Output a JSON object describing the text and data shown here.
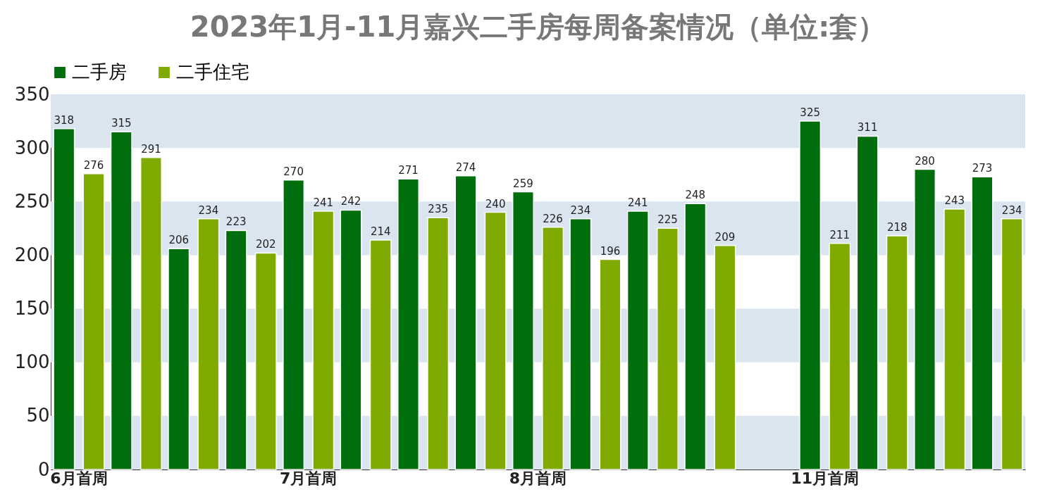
{
  "chart_data": {
    "type": "bar",
    "title": "2023年1月-11月嘉兴二手房每周备案情况（单位:套）",
    "categories": [
      "6月首周",
      null,
      null,
      null,
      "7月首周",
      null,
      null,
      null,
      "8月首周",
      null,
      null,
      null,
      null,
      "11月首周",
      null,
      null,
      null
    ],
    "series": [
      {
        "name": "二手房",
        "color": "#006e0c",
        "values": [
          318,
          315,
          206,
          223,
          270,
          242,
          271,
          274,
          259,
          234,
          241,
          248,
          null,
          325,
          311,
          280,
          273
        ]
      },
      {
        "name": "二手住宅",
        "color": "#7faa00",
        "values": [
          276,
          291,
          234,
          202,
          241,
          214,
          235,
          240,
          226,
          196,
          225,
          209,
          null,
          211,
          218,
          243,
          234
        ]
      }
    ],
    "ylim": [
      0,
      350
    ],
    "yticks": [
      0,
      50,
      100,
      150,
      200,
      250,
      300,
      350
    ],
    "bands": [
      {
        "axis": "y",
        "from": 0,
        "to": 50,
        "color": "#dbe5f0"
      },
      {
        "axis": "y",
        "from": 100,
        "to": 150,
        "color": "#dbe5f0"
      },
      {
        "axis": "y",
        "from": 200,
        "to": 250,
        "color": "#dbe5f0"
      },
      {
        "axis": "y",
        "from": 300,
        "to": 350,
        "color": "#dbe5f0"
      }
    ],
    "data_labels": true,
    "legend": "top"
  }
}
